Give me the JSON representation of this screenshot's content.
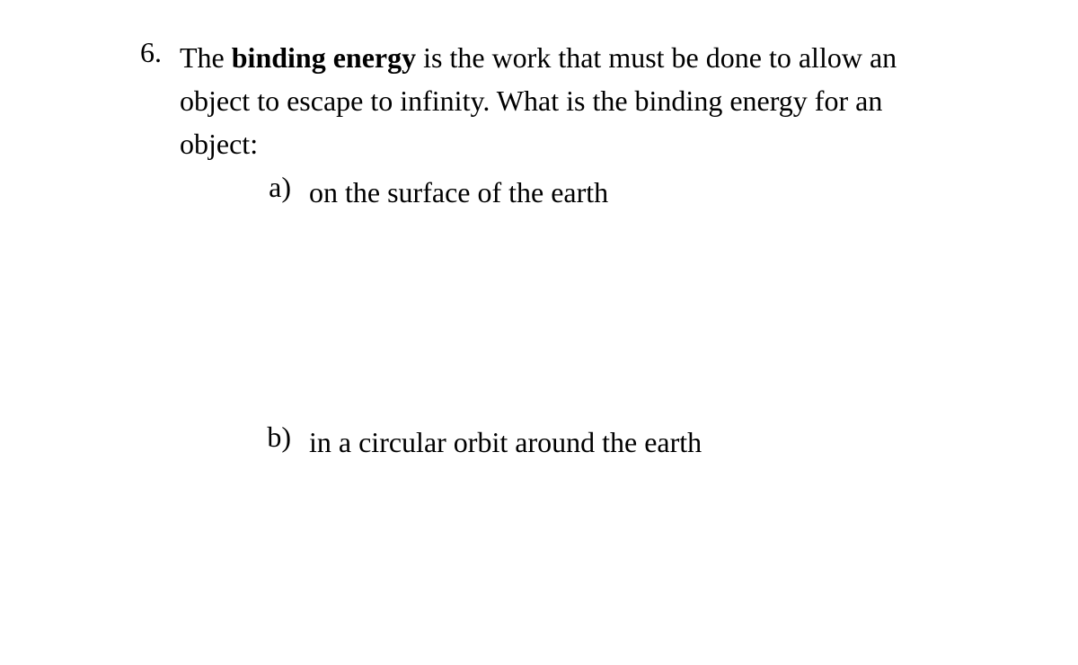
{
  "question": {
    "number": "6.",
    "text_parts": {
      "prefix": "The ",
      "bold": "binding energy",
      "suffix": " is the work that must be done to allow an object to escape to infinity. What is the binding energy for an object:"
    },
    "sub_a": {
      "letter": "a)",
      "text": "on the surface of the earth"
    },
    "sub_b": {
      "letter": "b)",
      "text": "in a circular orbit around the earth"
    }
  },
  "styling": {
    "font_family": "Times New Roman",
    "font_size_pt": 24,
    "text_color": "#000000",
    "background_color": "#ffffff"
  }
}
